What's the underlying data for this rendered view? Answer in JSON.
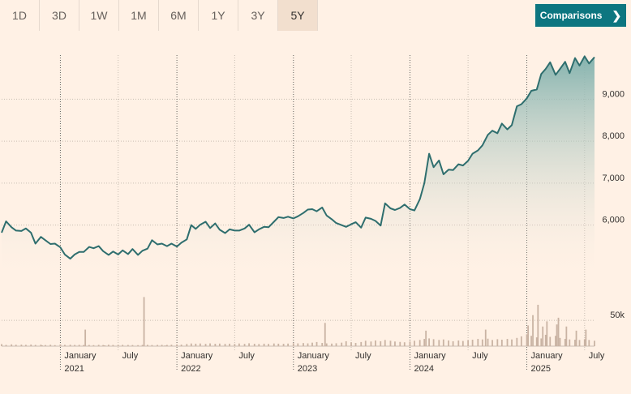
{
  "range_tabs": [
    "1D",
    "3D",
    "1W",
    "1M",
    "6M",
    "1Y",
    "3Y",
    "5Y"
  ],
  "active_tab": "5Y",
  "comparisons_label": "Comparisons",
  "colors": {
    "line": "#2e6e6e",
    "area_top": "#7fb0ac",
    "volume": "#c9b3a3",
    "button": "#0d7680",
    "background": "#fff1e5"
  },
  "chart_data": {
    "type": "area",
    "title": "",
    "xlabel": "",
    "ylabel": "",
    "x_range": [
      "2020-07-01",
      "2025-08-01"
    ],
    "ylim": [
      4700,
      10300
    ],
    "y_ticks": [
      6000,
      7000,
      8000,
      9000
    ],
    "y_tick_labels": [
      "6,000",
      "7,000",
      "8,000",
      "9,000"
    ],
    "x_ticks": [
      {
        "date": "2021-01-01",
        "month": "January",
        "year": "2021"
      },
      {
        "date": "2021-07-01",
        "month": "July",
        "year": ""
      },
      {
        "date": "2022-01-01",
        "month": "January",
        "year": "2022"
      },
      {
        "date": "2022-07-01",
        "month": "July",
        "year": ""
      },
      {
        "date": "2023-01-01",
        "month": "January",
        "year": "2023"
      },
      {
        "date": "2023-07-01",
        "month": "July",
        "year": ""
      },
      {
        "date": "2024-01-01",
        "month": "January",
        "year": "2024"
      },
      {
        "date": "2024-07-01",
        "month": "July",
        "year": ""
      },
      {
        "date": "2025-01-01",
        "month": "January",
        "year": "2025"
      },
      {
        "date": "2025-07-01",
        "month": "July",
        "year": ""
      }
    ],
    "series": [
      {
        "values": [
          [
            "2020-07-01",
            5820
          ],
          [
            "2020-07-15",
            6090
          ],
          [
            "2020-08-01",
            5950
          ],
          [
            "2020-08-15",
            5870
          ],
          [
            "2020-09-01",
            5860
          ],
          [
            "2020-09-15",
            5920
          ],
          [
            "2020-10-01",
            5820
          ],
          [
            "2020-10-15",
            5560
          ],
          [
            "2020-11-01",
            5720
          ],
          [
            "2020-11-15",
            5640
          ],
          [
            "2020-12-01",
            5550
          ],
          [
            "2020-12-15",
            5560
          ],
          [
            "2021-01-01",
            5470
          ],
          [
            "2021-01-15",
            5300
          ],
          [
            "2021-02-01",
            5200
          ],
          [
            "2021-02-15",
            5300
          ],
          [
            "2021-03-01",
            5360
          ],
          [
            "2021-03-15",
            5360
          ],
          [
            "2021-04-01",
            5480
          ],
          [
            "2021-04-15",
            5450
          ],
          [
            "2021-05-01",
            5500
          ],
          [
            "2021-05-15",
            5380
          ],
          [
            "2021-06-01",
            5290
          ],
          [
            "2021-06-15",
            5370
          ],
          [
            "2021-07-01",
            5300
          ],
          [
            "2021-07-15",
            5400
          ],
          [
            "2021-08-01",
            5310
          ],
          [
            "2021-08-15",
            5430
          ],
          [
            "2021-09-01",
            5290
          ],
          [
            "2021-09-15",
            5390
          ],
          [
            "2021-10-01",
            5440
          ],
          [
            "2021-10-15",
            5640
          ],
          [
            "2021-11-01",
            5540
          ],
          [
            "2021-11-15",
            5560
          ],
          [
            "2021-12-01",
            5500
          ],
          [
            "2021-12-15",
            5560
          ],
          [
            "2022-01-01",
            5490
          ],
          [
            "2022-01-15",
            5580
          ],
          [
            "2022-02-01",
            5660
          ],
          [
            "2022-02-15",
            6000
          ],
          [
            "2022-03-01",
            5910
          ],
          [
            "2022-03-15",
            6010
          ],
          [
            "2022-04-01",
            6080
          ],
          [
            "2022-04-15",
            5930
          ],
          [
            "2022-05-01",
            6040
          ],
          [
            "2022-05-15",
            5890
          ],
          [
            "2022-06-01",
            5810
          ],
          [
            "2022-06-15",
            5900
          ],
          [
            "2022-07-01",
            5870
          ],
          [
            "2022-07-15",
            5870
          ],
          [
            "2022-08-01",
            5920
          ],
          [
            "2022-08-15",
            6010
          ],
          [
            "2022-09-01",
            5830
          ],
          [
            "2022-09-15",
            5900
          ],
          [
            "2022-10-01",
            5960
          ],
          [
            "2022-10-15",
            5950
          ],
          [
            "2022-11-01",
            6080
          ],
          [
            "2022-11-15",
            6190
          ],
          [
            "2022-12-01",
            6170
          ],
          [
            "2022-12-15",
            6200
          ],
          [
            "2023-01-01",
            6160
          ],
          [
            "2023-01-15",
            6210
          ],
          [
            "2023-02-01",
            6290
          ],
          [
            "2023-02-15",
            6370
          ],
          [
            "2023-03-01",
            6380
          ],
          [
            "2023-03-15",
            6330
          ],
          [
            "2023-04-01",
            6420
          ],
          [
            "2023-04-15",
            6230
          ],
          [
            "2023-05-01",
            6140
          ],
          [
            "2023-05-15",
            6050
          ],
          [
            "2023-06-01",
            6000
          ],
          [
            "2023-06-15",
            5960
          ],
          [
            "2023-07-01",
            6020
          ],
          [
            "2023-07-15",
            6070
          ],
          [
            "2023-08-01",
            5940
          ],
          [
            "2023-08-15",
            6180
          ],
          [
            "2023-09-01",
            6150
          ],
          [
            "2023-09-15",
            6100
          ],
          [
            "2023-10-01",
            5990
          ],
          [
            "2023-10-15",
            6520
          ],
          [
            "2023-11-01",
            6400
          ],
          [
            "2023-11-15",
            6360
          ],
          [
            "2023-12-01",
            6410
          ],
          [
            "2023-12-15",
            6490
          ],
          [
            "2024-01-01",
            6380
          ],
          [
            "2024-01-15",
            6350
          ],
          [
            "2024-02-01",
            6620
          ],
          [
            "2024-02-15",
            7000
          ],
          [
            "2024-03-01",
            7700
          ],
          [
            "2024-03-15",
            7380
          ],
          [
            "2024-04-01",
            7540
          ],
          [
            "2024-04-15",
            7210
          ],
          [
            "2024-05-01",
            7320
          ],
          [
            "2024-05-15",
            7310
          ],
          [
            "2024-06-01",
            7450
          ],
          [
            "2024-06-15",
            7420
          ],
          [
            "2024-07-01",
            7530
          ],
          [
            "2024-07-15",
            7700
          ],
          [
            "2024-08-01",
            7780
          ],
          [
            "2024-08-15",
            7900
          ],
          [
            "2024-09-01",
            8150
          ],
          [
            "2024-09-15",
            8250
          ],
          [
            "2024-10-01",
            8190
          ],
          [
            "2024-10-15",
            8420
          ],
          [
            "2024-11-01",
            8280
          ],
          [
            "2024-11-15",
            8380
          ],
          [
            "2024-12-01",
            8830
          ],
          [
            "2024-12-15",
            8880
          ],
          [
            "2025-01-01",
            9020
          ],
          [
            "2025-01-15",
            9200
          ],
          [
            "2025-02-01",
            9230
          ],
          [
            "2025-02-15",
            9600
          ],
          [
            "2025-03-01",
            9720
          ],
          [
            "2025-03-15",
            9880
          ],
          [
            "2025-04-01",
            9580
          ],
          [
            "2025-04-15",
            9720
          ],
          [
            "2025-05-01",
            9890
          ],
          [
            "2025-05-15",
            9620
          ],
          [
            "2025-06-01",
            9980
          ],
          [
            "2025-06-15",
            9800
          ],
          [
            "2025-07-01",
            10020
          ],
          [
            "2025-07-15",
            9850
          ],
          [
            "2025-08-01",
            10000
          ]
        ]
      }
    ],
    "volume": {
      "tick_label": "50k",
      "tick_value": 50000,
      "max": 105000,
      "values": [
        [
          "2020-07-01",
          4000
        ],
        [
          "2020-07-15",
          2500
        ],
        [
          "2020-08-01",
          3500
        ],
        [
          "2020-08-15",
          2800
        ],
        [
          "2020-09-01",
          3000
        ],
        [
          "2020-09-15",
          2600
        ],
        [
          "2020-10-01",
          3200
        ],
        [
          "2020-10-15",
          2400
        ],
        [
          "2020-11-01",
          3000
        ],
        [
          "2020-11-15",
          2200
        ],
        [
          "2020-12-01",
          2800
        ],
        [
          "2020-12-15",
          2000
        ],
        [
          "2021-01-01",
          3500
        ],
        [
          "2021-01-15",
          2600
        ],
        [
          "2021-02-01",
          2800
        ],
        [
          "2021-02-15",
          2400
        ],
        [
          "2021-03-01",
          2600
        ],
        [
          "2021-03-15",
          2200
        ],
        [
          "2021-04-01",
          2400
        ],
        [
          "2021-04-15",
          2000
        ],
        [
          "2021-05-01",
          2600
        ],
        [
          "2021-05-15",
          2200
        ],
        [
          "2021-06-01",
          2800
        ],
        [
          "2021-06-15",
          2400
        ],
        [
          "2021-07-01",
          2200
        ],
        [
          "2021-07-15",
          2600
        ],
        [
          "2021-08-01",
          2400
        ],
        [
          "2021-08-15",
          2200
        ],
        [
          "2021-09-01",
          2000
        ],
        [
          "2021-09-15",
          2400
        ],
        [
          "2021-10-01",
          2600
        ],
        [
          "2021-10-15",
          2200
        ],
        [
          "2021-11-01",
          2400
        ],
        [
          "2021-11-15",
          2600
        ],
        [
          "2021-12-01",
          2400
        ],
        [
          "2021-12-15",
          2800
        ],
        [
          "2022-01-01",
          3500
        ],
        [
          "2022-01-15",
          3000
        ],
        [
          "2022-02-01",
          4200
        ],
        [
          "2022-02-15",
          5200
        ],
        [
          "2022-03-01",
          4800
        ],
        [
          "2022-03-15",
          5200
        ],
        [
          "2022-04-01",
          4400
        ],
        [
          "2022-04-15",
          5400
        ],
        [
          "2022-05-01",
          4600
        ],
        [
          "2022-05-15",
          5000
        ],
        [
          "2022-06-01",
          4400
        ],
        [
          "2022-06-15",
          4800
        ],
        [
          "2022-07-01",
          4200
        ],
        [
          "2022-07-15",
          5200
        ],
        [
          "2022-08-01",
          4400
        ],
        [
          "2022-08-15",
          5600
        ],
        [
          "2022-09-01",
          4600
        ],
        [
          "2022-09-15",
          4200
        ],
        [
          "2022-10-01",
          4800
        ],
        [
          "2022-10-15",
          4400
        ],
        [
          "2022-11-01",
          5200
        ],
        [
          "2022-11-15",
          4800
        ],
        [
          "2022-12-01",
          4600
        ],
        [
          "2022-12-15",
          5000
        ],
        [
          "2023-01-01",
          5800
        ],
        [
          "2023-01-15",
          5400
        ],
        [
          "2023-02-01",
          6000
        ],
        [
          "2023-02-15",
          5400
        ],
        [
          "2023-03-01",
          6800
        ],
        [
          "2023-03-15",
          8000
        ],
        [
          "2023-04-01",
          6200
        ],
        [
          "2023-04-15",
          5400
        ],
        [
          "2023-05-01",
          5000
        ],
        [
          "2023-05-15",
          5600
        ],
        [
          "2023-06-01",
          6800
        ],
        [
          "2023-06-15",
          9500
        ],
        [
          "2023-07-01",
          7500
        ],
        [
          "2023-07-15",
          6200
        ],
        [
          "2023-08-01",
          8000
        ],
        [
          "2023-08-15",
          10500
        ],
        [
          "2023-09-01",
          9000
        ],
        [
          "2023-09-15",
          11000
        ],
        [
          "2023-10-01",
          9500
        ],
        [
          "2023-10-15",
          12000
        ],
        [
          "2023-11-01",
          10500
        ],
        [
          "2023-11-15",
          9000
        ],
        [
          "2023-12-01",
          8200
        ],
        [
          "2023-12-15",
          7500
        ],
        [
          "2024-01-01",
          9000
        ],
        [
          "2024-01-15",
          10500
        ],
        [
          "2024-02-01",
          12000
        ],
        [
          "2024-02-15",
          14000
        ],
        [
          "2024-03-01",
          15000
        ],
        [
          "2024-03-15",
          13500
        ],
        [
          "2024-04-01",
          12000
        ],
        [
          "2024-04-15",
          13000
        ],
        [
          "2024-05-01",
          11000
        ],
        [
          "2024-05-15",
          9500
        ],
        [
          "2024-06-01",
          11000
        ],
        [
          "2024-06-15",
          10000
        ],
        [
          "2024-07-01",
          11500
        ],
        [
          "2024-07-15",
          12500
        ],
        [
          "2024-08-01",
          14000
        ],
        [
          "2024-08-15",
          13000
        ],
        [
          "2024-09-01",
          14500
        ],
        [
          "2024-09-15",
          12000
        ],
        [
          "2024-10-01",
          13500
        ],
        [
          "2024-10-15",
          12500
        ],
        [
          "2024-11-01",
          14000
        ],
        [
          "2024-11-15",
          13000
        ],
        [
          "2024-12-01",
          16000
        ],
        [
          "2024-12-15",
          19000
        ],
        [
          "2025-01-01",
          23000
        ],
        [
          "2025-01-15",
          20000
        ],
        [
          "2025-02-01",
          17000
        ],
        [
          "2025-02-15",
          15000
        ],
        [
          "2025-03-01",
          22000
        ],
        [
          "2025-03-15",
          18000
        ],
        [
          "2025-04-01",
          20000
        ],
        [
          "2025-04-15",
          16000
        ],
        [
          "2025-05-01",
          14000
        ],
        [
          "2025-05-15",
          13000
        ],
        [
          "2025-06-01",
          12500
        ],
        [
          "2025-06-15",
          12000
        ],
        [
          "2025-07-01",
          13500
        ],
        [
          "2025-07-15",
          12000
        ],
        [
          "2025-08-01",
          10500
        ],
        [
          "2020-11-05",
          1500
        ],
        [
          "2021-05-20",
          1600
        ],
        [
          "2021-11-25",
          1400
        ],
        [
          "2021-03-20",
          32000
        ],
        [
          "2021-09-20",
          95000
        ],
        [
          "2023-04-10",
          45000
        ],
        [
          "2024-02-20",
          30000
        ],
        [
          "2024-08-25",
          32000
        ],
        [
          "2025-01-05",
          40000
        ],
        [
          "2025-01-20",
          60000
        ],
        [
          "2025-02-05",
          80000
        ],
        [
          "2025-02-20",
          38000
        ],
        [
          "2025-03-05",
          48000
        ],
        [
          "2025-04-05",
          42000
        ],
        [
          "2025-04-10",
          55000
        ],
        [
          "2025-05-05",
          38000
        ],
        [
          "2025-06-05",
          30000
        ],
        [
          "2025-07-05",
          32000
        ]
      ]
    }
  }
}
